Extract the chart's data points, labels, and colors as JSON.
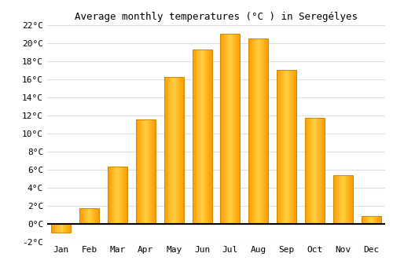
{
  "title": "Average monthly temperatures (°C ) in Seregélyes",
  "months": [
    "Jan",
    "Feb",
    "Mar",
    "Apr",
    "May",
    "Jun",
    "Jul",
    "Aug",
    "Sep",
    "Oct",
    "Nov",
    "Dec"
  ],
  "values": [
    -1.0,
    1.7,
    6.3,
    11.5,
    16.2,
    19.3,
    21.0,
    20.5,
    17.0,
    11.7,
    5.4,
    0.9
  ],
  "bar_color_face": "#FFAA00",
  "bar_color_edge": "#CC8800",
  "background_color": "#ffffff",
  "grid_color": "#dddddd",
  "ylim": [
    -2,
    22
  ],
  "yticks": [
    -2,
    0,
    2,
    4,
    6,
    8,
    10,
    12,
    14,
    16,
    18,
    20,
    22
  ],
  "title_fontsize": 9,
  "tick_fontsize": 8,
  "bar_width": 0.7
}
